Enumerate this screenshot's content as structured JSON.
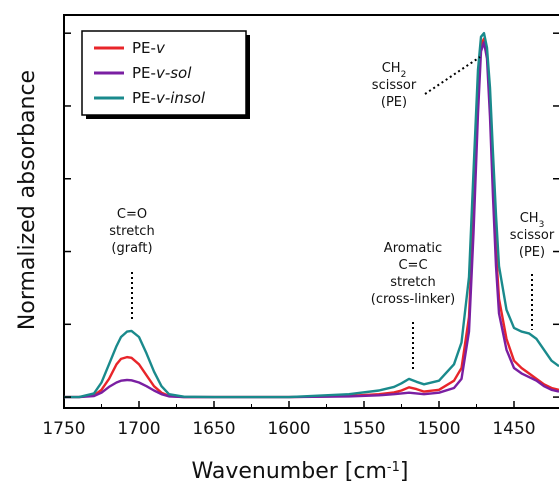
{
  "chart_data": {
    "type": "line",
    "xlabel": "Wavenumber [cm",
    "xlabel_sup": "-1",
    "xlabel_close": "]",
    "ylabel": "Normalized absorbance",
    "xlim": [
      1750,
      1420
    ],
    "x_reversed": true,
    "ylim": [
      -0.03,
      1.05
    ],
    "x_ticks": [
      1750,
      1700,
      1650,
      1600,
      1550,
      1500,
      1450
    ],
    "x_tick_labels": [
      "1750",
      "1700",
      "1650",
      "1600",
      "1550",
      "1500",
      "1450"
    ],
    "y_ticks": [
      0.0,
      0.2,
      0.4,
      0.6,
      0.8,
      1.0
    ],
    "legend": {
      "position": "top-left"
    },
    "colors": {
      "PE-v": "#e8252a",
      "PE-v-sol": "#7a1fa2",
      "PE-v-insol": "#1a8a8c"
    },
    "series": [
      {
        "key": "PE-v",
        "name_base": "PE-",
        "name_italic": "v",
        "x": [
          1750,
          1740,
          1730,
          1725,
          1720,
          1715,
          1712,
          1708,
          1705,
          1700,
          1695,
          1690,
          1685,
          1680,
          1670,
          1650,
          1600,
          1560,
          1540,
          1530,
          1525,
          1520,
          1515,
          1510,
          1500,
          1490,
          1485,
          1480,
          1477,
          1474,
          1472,
          1470,
          1468,
          1466,
          1464,
          1462,
          1460,
          1455,
          1450,
          1445,
          1440,
          1435,
          1430,
          1425,
          1420
        ],
        "y": [
          0.0,
          0.0,
          0.005,
          0.02,
          0.05,
          0.09,
          0.105,
          0.11,
          0.108,
          0.09,
          0.06,
          0.03,
          0.012,
          0.003,
          0.0,
          0.0,
          0.0,
          0.003,
          0.008,
          0.013,
          0.018,
          0.027,
          0.022,
          0.015,
          0.02,
          0.045,
          0.08,
          0.22,
          0.5,
          0.82,
          0.97,
          0.985,
          0.95,
          0.8,
          0.58,
          0.4,
          0.27,
          0.16,
          0.1,
          0.08,
          0.065,
          0.05,
          0.035,
          0.025,
          0.02
        ]
      },
      {
        "key": "PE-v-sol",
        "name_base": "PE-",
        "name_italic": "v-sol",
        "x": [
          1750,
          1740,
          1730,
          1725,
          1720,
          1715,
          1712,
          1708,
          1705,
          1700,
          1695,
          1690,
          1685,
          1680,
          1670,
          1650,
          1600,
          1560,
          1540,
          1530,
          1525,
          1520,
          1515,
          1510,
          1500,
          1490,
          1485,
          1480,
          1477,
          1474,
          1472,
          1470,
          1468,
          1466,
          1464,
          1462,
          1460,
          1455,
          1450,
          1445,
          1440,
          1435,
          1430,
          1425,
          1420
        ],
        "y": [
          0.0,
          0.0,
          0.003,
          0.012,
          0.028,
          0.04,
          0.045,
          0.047,
          0.046,
          0.04,
          0.03,
          0.018,
          0.008,
          0.002,
          0.0,
          0.0,
          0.0,
          0.002,
          0.005,
          0.008,
          0.01,
          0.012,
          0.01,
          0.008,
          0.012,
          0.025,
          0.05,
          0.18,
          0.45,
          0.78,
          0.95,
          0.975,
          0.93,
          0.77,
          0.55,
          0.36,
          0.23,
          0.13,
          0.08,
          0.065,
          0.055,
          0.045,
          0.03,
          0.02,
          0.015
        ]
      },
      {
        "key": "PE-v-insol",
        "name_base": "PE-",
        "name_italic": "v-insol",
        "x": [
          1750,
          1740,
          1730,
          1725,
          1720,
          1715,
          1712,
          1708,
          1705,
          1700,
          1695,
          1690,
          1685,
          1680,
          1670,
          1650,
          1600,
          1560,
          1540,
          1530,
          1525,
          1520,
          1515,
          1510,
          1500,
          1490,
          1485,
          1480,
          1477,
          1474,
          1472,
          1470,
          1468,
          1466,
          1464,
          1462,
          1460,
          1455,
          1450,
          1445,
          1440,
          1435,
          1430,
          1425,
          1420
        ],
        "y": [
          0.0,
          0.0,
          0.01,
          0.04,
          0.09,
          0.14,
          0.165,
          0.18,
          0.182,
          0.165,
          0.12,
          0.07,
          0.03,
          0.008,
          0.001,
          0.0,
          0.0,
          0.008,
          0.018,
          0.028,
          0.038,
          0.05,
          0.042,
          0.035,
          0.045,
          0.09,
          0.15,
          0.33,
          0.62,
          0.9,
          0.99,
          1.0,
          0.96,
          0.85,
          0.67,
          0.5,
          0.36,
          0.24,
          0.19,
          0.18,
          0.175,
          0.16,
          0.13,
          0.1,
          0.085
        ]
      }
    ],
    "annotations": [
      {
        "lines": [
          "C=O",
          "stretch",
          "(graft)"
        ]
      },
      {
        "lines": [
          "Aromatic",
          "C=C",
          "stretch",
          "(cross-linker)"
        ]
      },
      {
        "lines": [
          "CH",
          "scissor",
          "(PE)"
        ],
        "first_sub": "2"
      },
      {
        "lines": [
          "CH",
          "scissor",
          "(PE)"
        ],
        "first_sub": "3"
      }
    ]
  }
}
